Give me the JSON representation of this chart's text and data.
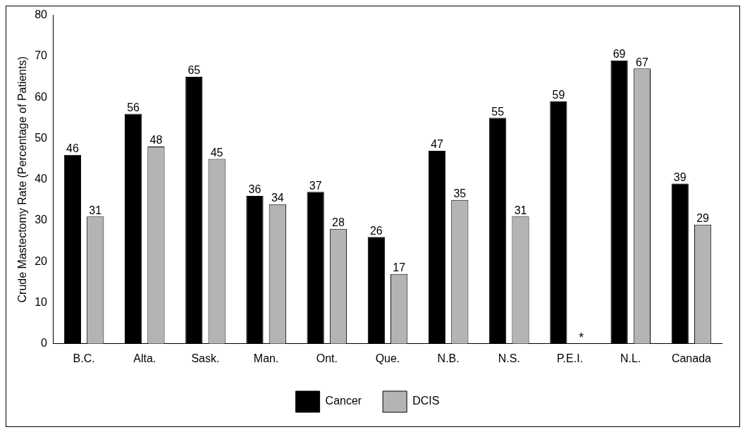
{
  "chart_data": {
    "type": "bar",
    "ylabel": "Crude Mastectomy Rate (Percentage of Patients)",
    "categories": [
      "B.C.",
      "Alta.",
      "Sask.",
      "Man.",
      "Ont.",
      "Que.",
      "N.B.",
      "N.S.",
      "P.E.I.",
      "N.L.",
      "Canada"
    ],
    "series": [
      {
        "name": "Cancer",
        "color": "#000000",
        "values": [
          46,
          56,
          65,
          36,
          37,
          26,
          47,
          55,
          59,
          69,
          39
        ]
      },
      {
        "name": "DCIS",
        "color": "#b4b4b4",
        "values": [
          31,
          48,
          45,
          34,
          28,
          17,
          35,
          31,
          null,
          67,
          29
        ]
      }
    ],
    "ylim": [
      0,
      80
    ],
    "yticks": [
      0,
      10,
      20,
      30,
      40,
      50,
      60,
      70,
      80
    ],
    "grid": false,
    "legend": "bottom",
    "data_labels": true,
    "annotations": [
      {
        "text": "*",
        "x": "P.E.I.",
        "y": 0
      }
    ]
  }
}
